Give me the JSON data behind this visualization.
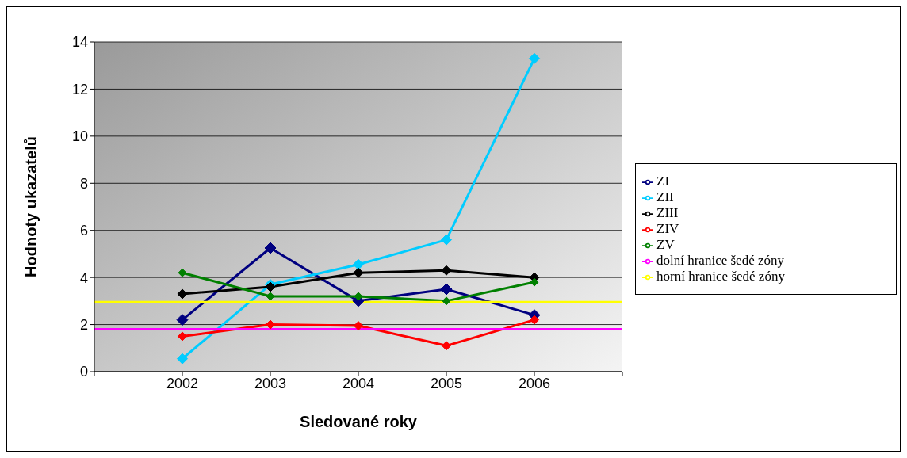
{
  "chart_data": {
    "type": "line",
    "xlabel": "Sledované roky",
    "ylabel": "Hodnoty ukazatelů",
    "categories": [
      null,
      "2002",
      "2003",
      "2004",
      "2005",
      "2006",
      null
    ],
    "series": [
      {
        "name": "ZI",
        "color": "#000080",
        "values": [
          null,
          2.2,
          5.25,
          3.0,
          3.5,
          2.4,
          null
        ]
      },
      {
        "name": "ZII",
        "color": "#00ccff",
        "values": [
          null,
          0.55,
          3.7,
          4.55,
          5.6,
          13.3,
          null
        ]
      },
      {
        "name": "ZIII",
        "color": "#000000",
        "values": [
          null,
          3.3,
          3.6,
          4.2,
          4.3,
          4.0,
          null
        ]
      },
      {
        "name": "ZIV",
        "color": "#ff0000",
        "values": [
          null,
          1.5,
          2.0,
          1.95,
          1.1,
          2.2,
          null
        ]
      },
      {
        "name": "ZV",
        "color": "#008000",
        "values": [
          null,
          4.2,
          3.2,
          3.2,
          3.0,
          3.8,
          null
        ]
      },
      {
        "name": "dolní hranice šedé zóny",
        "color": "#ff00ff",
        "marker": "none",
        "values": [
          1.8,
          1.8,
          1.8,
          1.8,
          1.8,
          1.8,
          1.8
        ]
      },
      {
        "name": "horní hranice šedé zóny",
        "color": "#ffff00",
        "marker": "none",
        "values": [
          2.95,
          2.95,
          2.95,
          2.95,
          2.95,
          2.95,
          2.95
        ]
      }
    ],
    "ylim": [
      0,
      14
    ],
    "yticks": [
      0,
      2,
      4,
      6,
      8,
      10,
      12,
      14
    ],
    "grid": "y",
    "legend": "right",
    "marker": "diamond",
    "line_style": "solid"
  }
}
